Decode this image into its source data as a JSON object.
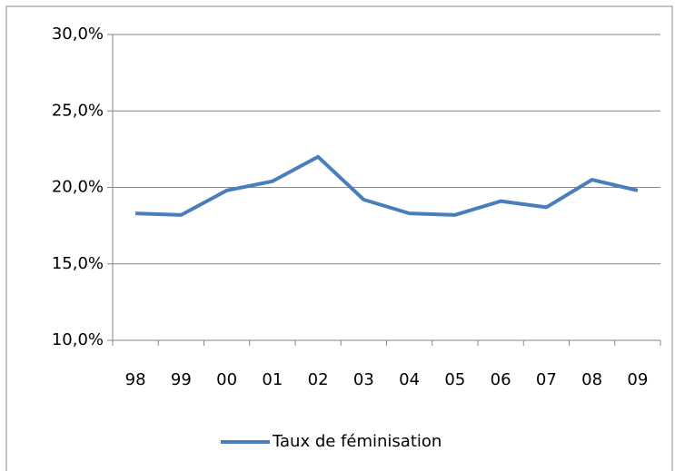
{
  "chart_data": {
    "type": "line",
    "categories": [
      "98",
      "99",
      "00",
      "01",
      "02",
      "03",
      "04",
      "05",
      "06",
      "07",
      "08",
      "09"
    ],
    "series": [
      {
        "name": "Taux de féminisation",
        "color": "#4a7ebb",
        "values": [
          18.3,
          18.2,
          19.8,
          20.4,
          22.0,
          19.2,
          18.3,
          18.2,
          19.1,
          18.7,
          20.5,
          19.8
        ]
      }
    ],
    "ylim": [
      10,
      30
    ],
    "yticks": [
      {
        "value": 10,
        "label": "10,0%"
      },
      {
        "value": 15,
        "label": "15,0%"
      },
      {
        "value": 20,
        "label": "20,0%"
      },
      {
        "value": 25,
        "label": "25,0%"
      },
      {
        "value": 30,
        "label": "30,0%"
      }
    ],
    "grid": true,
    "legend": "bottom"
  }
}
